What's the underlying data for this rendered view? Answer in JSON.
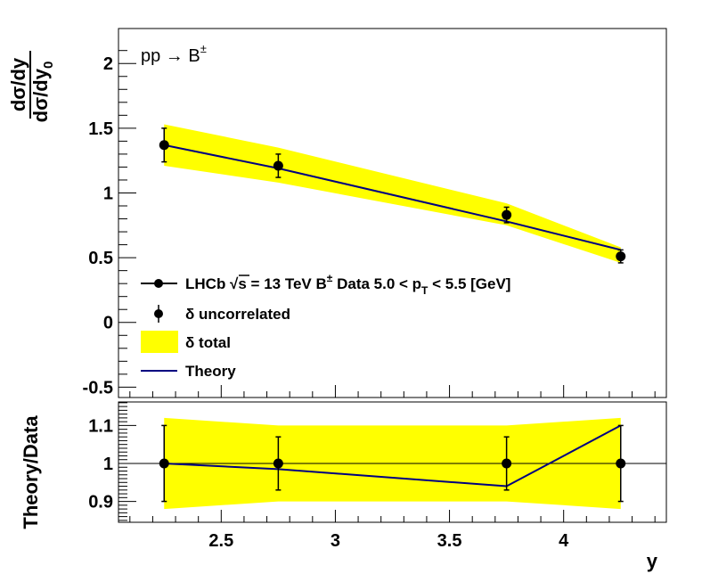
{
  "chart_data": [
    {
      "type": "line",
      "annotation": "pp → B",
      "annotation_sup": "±",
      "ylabel_num": "dσ/dy",
      "ylabel_den": "dσ/dy",
      "ylabel_den_sub": "0",
      "xlim": [
        2.05,
        4.45
      ],
      "ylim": [
        -0.58,
        2.27
      ],
      "yticks": [
        -0.5,
        0,
        0.5,
        1,
        1.5,
        2
      ],
      "ytick_labels": [
        "-0.5",
        "0",
        "0.5",
        "1",
        "1.5",
        "2"
      ],
      "x": [
        2.25,
        2.75,
        3.75,
        4.25
      ],
      "data": {
        "values": [
          1.37,
          1.21,
          0.83,
          0.51
        ],
        "err_uncorrelated": [
          0.13,
          0.09,
          0.06,
          0.05
        ]
      },
      "band_total": {
        "upper": [
          1.53,
          1.35,
          0.92,
          0.58
        ],
        "lower": [
          1.21,
          1.08,
          0.75,
          0.46
        ]
      },
      "theory": [
        1.37,
        1.19,
        0.78,
        0.56
      ],
      "legend": {
        "placement": "bottom-left",
        "entries": [
          {
            "pre": "LHCb  √s = 13 TeV B",
            "sup": "±",
            "mid": " Data 5.0 < p",
            "sub": "T",
            "post": " < 5.5 [GeV]"
          },
          {
            "label": "δ uncorrelated"
          },
          {
            "label": "δ total"
          },
          {
            "label": "Theory"
          }
        ]
      },
      "colors": {
        "band": "#ffff00",
        "theory": "#000080",
        "markers": "#000000"
      }
    },
    {
      "type": "line",
      "ylabel": "Theory/Data",
      "xlabel": "y",
      "xlim": [
        2.05,
        4.45
      ],
      "ylim": [
        0.845,
        1.162
      ],
      "yticks": [
        0.9,
        1.0,
        1.1
      ],
      "ytick_labels": [
        "0.9",
        "1",
        "1.1"
      ],
      "xticks": [
        2.5,
        3,
        3.5,
        4
      ],
      "xtick_labels": [
        "2.5",
        "3",
        "3.5",
        "4"
      ],
      "x": [
        2.25,
        2.75,
        3.75,
        4.25
      ],
      "ratio_points": [
        1.0,
        1.0,
        1.0,
        1.0
      ],
      "ratio_err": [
        0.1,
        0.07,
        0.07,
        0.1
      ],
      "band_upper": [
        1.12,
        1.1,
        1.1,
        1.12
      ],
      "band_lower": [
        0.88,
        0.9,
        0.9,
        0.88
      ],
      "theory_ratio": [
        1.0,
        0.985,
        0.94,
        1.1
      ],
      "reference_line": 1.0
    }
  ]
}
